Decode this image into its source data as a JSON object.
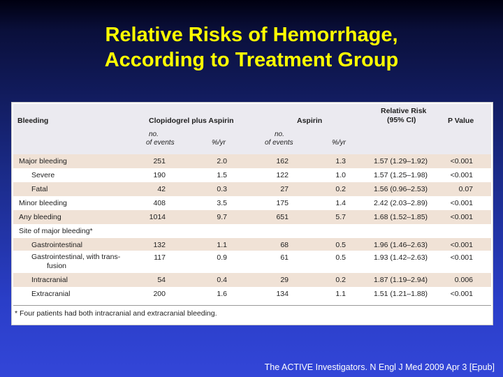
{
  "title": {
    "line1": "Relative Risks of Hemorrhage,",
    "line2": "According to Treatment Group"
  },
  "table": {
    "headers": {
      "bleeding": "Bleeding",
      "clopidogrel": "Clopidogrel plus Aspirin",
      "aspirin": "Aspirin",
      "rr_line1": "Relative Risk",
      "rr_line2": "(95% CI)",
      "pvalue": "P Value",
      "no_line1": "no.",
      "no_line2": "of events",
      "peryr": "%/yr"
    },
    "rows": [
      {
        "label": "Major bleeding",
        "c_events": "251",
        "c_rate": "2.0",
        "a_events": "162",
        "a_rate": "1.3",
        "rr": "1.57 (1.29–1.92)",
        "p": "<0.001"
      },
      {
        "label": "Severe",
        "c_events": "190",
        "c_rate": "1.5",
        "a_events": "122",
        "a_rate": "1.0",
        "rr": "1.57 (1.25–1.98)",
        "p": "<0.001"
      },
      {
        "label": "Fatal",
        "c_events": "42",
        "c_rate": "0.3",
        "a_events": "27",
        "a_rate": "0.2",
        "rr": "1.56 (0.96–2.53)",
        "p": "0.07"
      },
      {
        "label": "Minor bleeding",
        "c_events": "408",
        "c_rate": "3.5",
        "a_events": "175",
        "a_rate": "1.4",
        "rr": "2.42 (2.03–2.89)",
        "p": "<0.001"
      },
      {
        "label": "Any bleeding",
        "c_events": "1014",
        "c_rate": "9.7",
        "a_events": "651",
        "a_rate": "5.7",
        "rr": "1.68 (1.52–1.85)",
        "p": "<0.001"
      },
      {
        "label": "Site of major bleeding*",
        "c_events": "",
        "c_rate": "",
        "a_events": "",
        "a_rate": "",
        "rr": "",
        "p": ""
      },
      {
        "label": "Gastrointestinal",
        "c_events": "132",
        "c_rate": "1.1",
        "a_events": "68",
        "a_rate": "0.5",
        "rr": "1.96 (1.46–2.63)",
        "p": "<0.001"
      },
      {
        "label_line1": "Gastrointestinal, with trans-",
        "label_line2": "fusion",
        "c_events": "117",
        "c_rate": "0.9",
        "a_events": "61",
        "a_rate": "0.5",
        "rr": "1.93 (1.42–2.63)",
        "p": "<0.001"
      },
      {
        "label": "Intracranial",
        "c_events": "54",
        "c_rate": "0.4",
        "a_events": "29",
        "a_rate": "0.2",
        "rr": "1.87 (1.19–2.94)",
        "p": "0.006"
      },
      {
        "label": "Extracranial",
        "c_events": "200",
        "c_rate": "1.6",
        "a_events": "134",
        "a_rate": "1.1",
        "rr": "1.51 (1.21–1.88)",
        "p": "<0.001"
      }
    ],
    "footnote": "* Four patients had both intracranial and extracranial bleeding."
  },
  "citation": "The ACTIVE Investigators. N Engl J Med 2009 Apr 3 [Epub]"
}
